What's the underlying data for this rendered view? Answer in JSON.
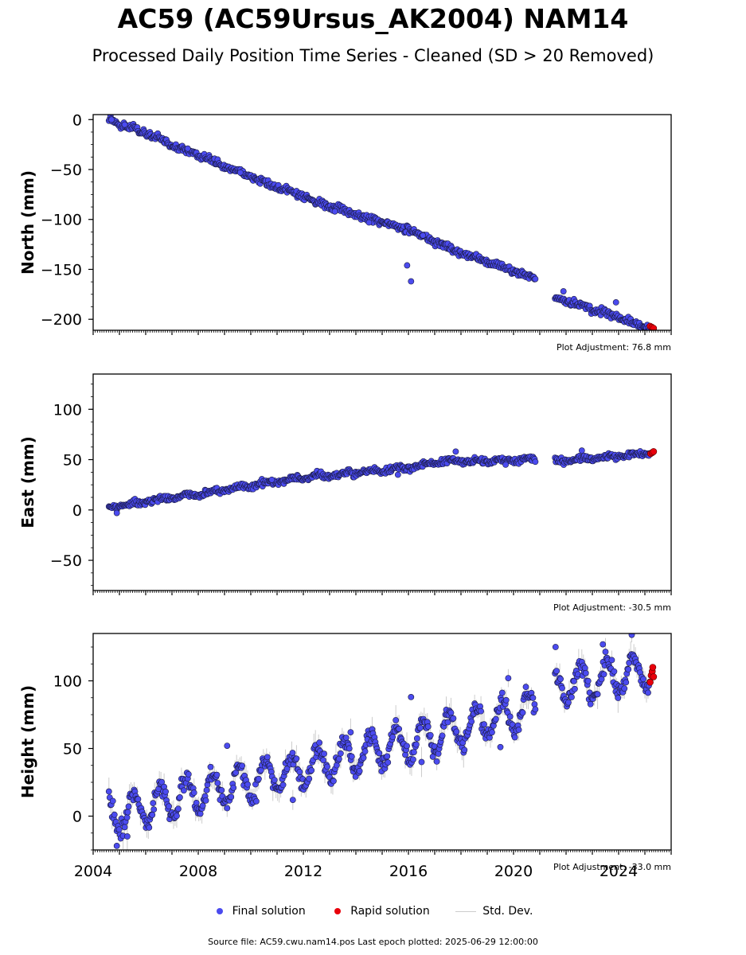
{
  "chart_data": {
    "type": "scatter",
    "title": "AC59 (AC59Ursus_AK2004) NAM14",
    "subtitle": "Processed Daily Position Time Series - Cleaned (SD > 20 Removed)",
    "x_ticks": [
      "2004",
      "2008",
      "2012",
      "2016",
      "2020",
      "2024"
    ],
    "xlim": [
      2004.0,
      2026.0
    ],
    "gap": [
      2020.85,
      2021.55
    ],
    "series_names": {
      "final": "Final solution",
      "rapid": "Rapid solution",
      "sd": "Std. Dev."
    },
    "colors": {
      "final": "#4b4bef",
      "rapid": "#e8000b",
      "sd": "#c0c0c0",
      "edge": "#1a1a40"
    },
    "panels": [
      {
        "ylabel": "North (mm)",
        "ylim": [
          -211,
          5
        ],
        "y_ticks": [
          0,
          -50,
          -100,
          -150,
          -200
        ],
        "adjustment": "Plot Adjustment: 76.8 mm",
        "trend_knots": [
          [
            2004.6,
            0
          ],
          [
            2008,
            -36
          ],
          [
            2012,
            -78
          ],
          [
            2016,
            -111
          ],
          [
            2018,
            -133
          ],
          [
            2020.85,
            -160
          ],
          [
            2021.55,
            -178
          ],
          [
            2025.3,
            -209
          ]
        ],
        "noise": 2.5,
        "seasonal": 0.8,
        "sd_spread": 0,
        "outliers": [
          [
            2015.95,
            -146
          ],
          [
            2016.1,
            -162
          ],
          [
            2013.2,
            -92
          ],
          [
            2016.55,
            -116
          ],
          [
            2023.9,
            -183
          ],
          [
            2004.7,
            0
          ],
          [
            2005.2,
            -5
          ],
          [
            2007.6,
            -29
          ],
          [
            2009.6,
            -53
          ],
          [
            2014.5,
            -103
          ],
          [
            2021.9,
            -172
          ]
        ],
        "rapid_points": [
          [
            2025.2,
            -207
          ],
          [
            2025.27,
            -208
          ],
          [
            2025.33,
            -209
          ]
        ]
      },
      {
        "ylabel": "East (mm)",
        "ylim": [
          -80,
          135
        ],
        "y_ticks": [
          100,
          50,
          0,
          -50
        ],
        "adjustment": "Plot Adjustment: -30.5 mm",
        "trend_knots": [
          [
            2004.6,
            2
          ],
          [
            2008,
            16
          ],
          [
            2012,
            32
          ],
          [
            2016,
            42
          ],
          [
            2017.6,
            49
          ],
          [
            2018.0,
            48
          ],
          [
            2020.85,
            50
          ],
          [
            2021.55,
            48
          ],
          [
            2025.3,
            57
          ]
        ],
        "noise": 2.0,
        "seasonal": 1.2,
        "sd_spread": 0,
        "outliers": [
          [
            2004.9,
            -3
          ],
          [
            2017.8,
            58
          ],
          [
            2022.6,
            59
          ],
          [
            2015.6,
            35
          ],
          [
            2010.8,
            30
          ],
          [
            2019.7,
            45
          ]
        ],
        "rapid_points": [
          [
            2025.22,
            56
          ],
          [
            2025.28,
            57
          ],
          [
            2025.33,
            58
          ]
        ]
      },
      {
        "ylabel": "Height (mm)",
        "ylim": [
          -25,
          135
        ],
        "y_ticks": [
          100,
          50,
          0
        ],
        "adjustment": "Plot Adjustment: -33.0 mm",
        "trend_knots": [
          [
            2004.6,
            0
          ],
          [
            2008,
            17
          ],
          [
            2012,
            35
          ],
          [
            2016,
            55
          ],
          [
            2020.85,
            80
          ],
          [
            2021.55,
            94
          ],
          [
            2025.3,
            108
          ]
        ],
        "noise": 4.5,
        "seasonal": 13,
        "sd_spread": 7,
        "outliers": [
          [
            2016.1,
            88
          ],
          [
            2019.8,
            102
          ],
          [
            2021.6,
            125
          ],
          [
            2024.5,
            134
          ],
          [
            2004.9,
            -22
          ],
          [
            2005.3,
            -15
          ],
          [
            2009.1,
            52
          ],
          [
            2013.8,
            62
          ],
          [
            2023.4,
            127
          ],
          [
            2016.5,
            40
          ],
          [
            2019.5,
            51
          ],
          [
            2011.6,
            12
          ]
        ],
        "rapid_points": [
          [
            2025.2,
            99
          ],
          [
            2025.24,
            104
          ],
          [
            2025.28,
            107
          ],
          [
            2025.3,
            110
          ],
          [
            2025.33,
            103
          ]
        ]
      }
    ]
  },
  "legend": {
    "final_label": "Final solution",
    "rapid_label": "Rapid solution",
    "sd_label": "Std. Dev."
  },
  "footer": {
    "text": "Source file: AC59.cwu.nam14.pos  Last epoch plotted: 2025-06-29 12:00:00"
  }
}
